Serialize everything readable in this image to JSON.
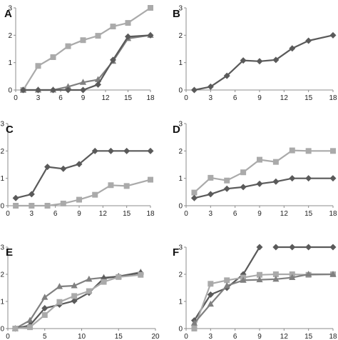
{
  "figure": {
    "colors": {
      "dark": "#5a5a5a",
      "light": "#aaaaaa"
    }
  },
  "chart_data": [
    {
      "id": "A",
      "type": "line",
      "panel_label": "A",
      "xlim": [
        0,
        18
      ],
      "ylim": [
        0,
        3
      ],
      "xticks": [
        "0",
        "3",
        "6",
        "9",
        "12",
        "15",
        "18"
      ],
      "yticks": [
        "0",
        "1",
        "2",
        "3"
      ],
      "series": [
        {
          "marker": "square",
          "color": "#aaaaaa",
          "x": [
            1,
            3,
            5,
            7,
            9,
            11,
            13,
            15,
            18
          ],
          "y": [
            0.0,
            0.88,
            1.2,
            1.6,
            1.82,
            1.98,
            2.32,
            2.45,
            3.0
          ]
        },
        {
          "marker": "triangle",
          "color": "#808080",
          "x": [
            1,
            3,
            5,
            7,
            9,
            11,
            13,
            15,
            18
          ],
          "y": [
            0.0,
            0.0,
            0.0,
            0.12,
            0.28,
            0.38,
            1.05,
            1.88,
            2.0
          ]
        },
        {
          "marker": "diamond",
          "color": "#5a5a5a",
          "x": [
            1,
            3,
            5,
            7,
            9,
            11,
            13,
            15,
            18
          ],
          "y": [
            0.0,
            0.0,
            0.0,
            0.0,
            0.0,
            0.2,
            1.1,
            1.95,
            2.0
          ]
        }
      ]
    },
    {
      "id": "B",
      "type": "line",
      "panel_label": "B",
      "xlim": [
        0,
        18
      ],
      "ylim": [
        0,
        3
      ],
      "xticks": [
        "0",
        "3",
        "6",
        "9",
        "12",
        "15",
        "18"
      ],
      "yticks": [
        "0",
        "1",
        "2",
        "3"
      ],
      "series": [
        {
          "marker": "diamond",
          "color": "#5a5a5a",
          "x": [
            1,
            3,
            5,
            7,
            9,
            11,
            13,
            15,
            18
          ],
          "y": [
            0.0,
            0.12,
            0.52,
            1.08,
            1.05,
            1.1,
            1.52,
            1.8,
            2.0
          ]
        }
      ]
    },
    {
      "id": "C",
      "type": "line",
      "panel_label": "C",
      "xlim": [
        0,
        18
      ],
      "ylim": [
        0,
        3
      ],
      "xticks": [
        "0",
        "3",
        "6",
        "9",
        "12",
        "15",
        "18"
      ],
      "yticks": [
        "0",
        "1",
        "2",
        "3"
      ],
      "series": [
        {
          "marker": "diamond",
          "color": "#5a5a5a",
          "x": [
            1,
            3,
            5,
            7,
            9,
            11,
            13,
            15,
            18
          ],
          "y": [
            0.28,
            0.42,
            1.42,
            1.35,
            1.52,
            2.0,
            2.0,
            2.0,
            2.0
          ]
        },
        {
          "marker": "square",
          "color": "#aaaaaa",
          "x": [
            1,
            3,
            5,
            7,
            9,
            11,
            13,
            15,
            18
          ],
          "y": [
            0.0,
            0.0,
            0.0,
            0.08,
            0.22,
            0.4,
            0.75,
            0.72,
            0.95
          ]
        }
      ]
    },
    {
      "id": "D",
      "type": "line",
      "panel_label": "D",
      "xlim": [
        0,
        18
      ],
      "ylim": [
        0,
        3
      ],
      "xticks": [
        "0",
        "3",
        "6",
        "9",
        "12",
        "15",
        "18"
      ],
      "yticks": [
        "0",
        "1",
        "2",
        "3"
      ],
      "series": [
        {
          "marker": "square",
          "color": "#aaaaaa",
          "x": [
            1,
            3,
            5,
            7,
            9,
            11,
            13,
            15,
            18
          ],
          "y": [
            0.48,
            1.02,
            0.92,
            1.22,
            1.68,
            1.6,
            2.02,
            2.0,
            2.0
          ]
        },
        {
          "marker": "diamond",
          "color": "#5a5a5a",
          "x": [
            1,
            3,
            5,
            7,
            9,
            11,
            13,
            15,
            18
          ],
          "y": [
            0.28,
            0.42,
            0.62,
            0.68,
            0.8,
            0.88,
            1.0,
            1.0,
            1.0
          ]
        }
      ]
    },
    {
      "id": "E",
      "type": "line",
      "panel_label": "E",
      "xlim": [
        0,
        20
      ],
      "ylim": [
        0,
        3
      ],
      "xticks": [
        "0",
        "5",
        "10",
        "15",
        "20"
      ],
      "yticks": [
        "0",
        "1",
        "2",
        "3"
      ],
      "series": [
        {
          "marker": "triangle",
          "color": "#808080",
          "x": [
            1,
            3,
            5,
            7,
            9,
            11,
            13,
            15,
            18
          ],
          "y": [
            0.0,
            0.3,
            1.15,
            1.55,
            1.58,
            1.82,
            1.88,
            1.92,
            2.08
          ]
        },
        {
          "marker": "diamond",
          "color": "#5a5a5a",
          "x": [
            1,
            3,
            5,
            7,
            9,
            11,
            13,
            15,
            18
          ],
          "y": [
            0.0,
            0.12,
            0.75,
            0.88,
            1.02,
            1.32,
            1.85,
            1.92,
            2.05
          ]
        },
        {
          "marker": "square",
          "color": "#aaaaaa",
          "x": [
            1,
            3,
            5,
            7,
            9,
            11,
            13,
            15,
            18
          ],
          "y": [
            0.0,
            0.05,
            0.5,
            0.98,
            1.2,
            1.38,
            1.72,
            1.9,
            1.98
          ]
        }
      ]
    },
    {
      "id": "F",
      "type": "line",
      "panel_label": "F",
      "xlim": [
        0,
        18
      ],
      "ylim": [
        0,
        3
      ],
      "xticks": [
        "0",
        "3",
        "6",
        "9",
        "12",
        "15",
        "18"
      ],
      "yticks": [
        "0",
        "1",
        "2",
        "3"
      ],
      "series": [
        {
          "marker": "diamond",
          "color": "#5a5a5a",
          "x": [
            1,
            3,
            5,
            7,
            9
          ],
          "y": [
            0.3,
            1.25,
            1.5,
            2.0,
            3.0
          ]
        },
        {
          "marker": "diamond",
          "color": "#5a5a5a",
          "x": [
            11,
            13,
            15,
            18
          ],
          "y": [
            3.0,
            3.0,
            3.0,
            3.0
          ]
        },
        {
          "marker": "square",
          "color": "#aaaaaa",
          "x": [
            1,
            3,
            5,
            7,
            9,
            11,
            13,
            15,
            18
          ],
          "y": [
            0.0,
            1.65,
            1.78,
            1.88,
            1.98,
            2.0,
            2.0,
            1.98,
            2.0
          ]
        },
        {
          "marker": "triangle",
          "color": "#808080",
          "x": [
            1,
            3,
            5,
            7,
            9,
            11,
            13,
            15,
            18
          ],
          "y": [
            0.2,
            0.9,
            1.58,
            1.78,
            1.8,
            1.82,
            1.88,
            2.0,
            2.0
          ]
        }
      ]
    }
  ]
}
